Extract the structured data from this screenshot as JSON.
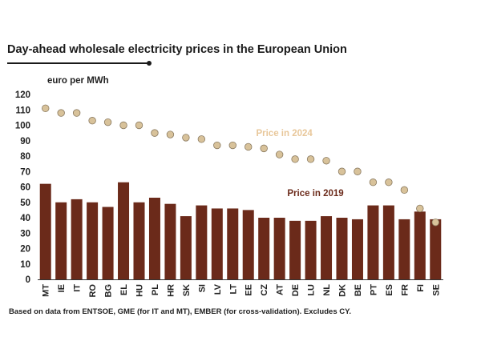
{
  "chart_data": {
    "type": "bar",
    "title": "Day-ahead wholesale electricity prices in the European Union",
    "ylabel": "euro per MWh",
    "ylim": [
      0,
      120
    ],
    "yticks": [
      0,
      10,
      20,
      30,
      40,
      50,
      60,
      70,
      80,
      90,
      100,
      110,
      120
    ],
    "grid": false,
    "categories": [
      "MT",
      "IE",
      "IT",
      "RO",
      "BG",
      "EL",
      "HU",
      "PL",
      "HR",
      "SK",
      "SI",
      "LV",
      "LT",
      "EE",
      "CZ",
      "AT",
      "DE",
      "LU",
      "NL",
      "DK",
      "BE",
      "PT",
      "ES",
      "FR",
      "FI",
      "SE"
    ],
    "series": [
      {
        "name": "Price in 2019",
        "mark": "bar",
        "color": "#6b2a1a",
        "values": [
          62,
          50,
          52,
          50,
          47,
          63,
          50,
          53,
          49,
          41,
          48,
          46,
          46,
          45,
          40,
          40,
          38,
          38,
          41,
          40,
          39,
          48,
          48,
          39,
          44,
          39
        ]
      },
      {
        "name": "Price in 2024",
        "mark": "dot",
        "color": "#d8c29a",
        "values": [
          111,
          108,
          108,
          103,
          102,
          100,
          100,
          95,
          94,
          92,
          91,
          87,
          87,
          86,
          85,
          81,
          78,
          78,
          77,
          70,
          70,
          63,
          63,
          58,
          46,
          37
        ]
      }
    ],
    "annotations": [
      {
        "text": "Price in 2024",
        "series": "Price in 2024",
        "at_category": "CZ",
        "y": 93,
        "color": "#e8c79a"
      },
      {
        "text": "Price in 2019",
        "series": "Price in 2019",
        "at_category": "DE",
        "y": 54,
        "color": "#6b2a1a"
      }
    ],
    "source": "Based on data from ENTSOE, GME (for IT and MT), EMBER (for cross-validation). Excludes CY."
  }
}
